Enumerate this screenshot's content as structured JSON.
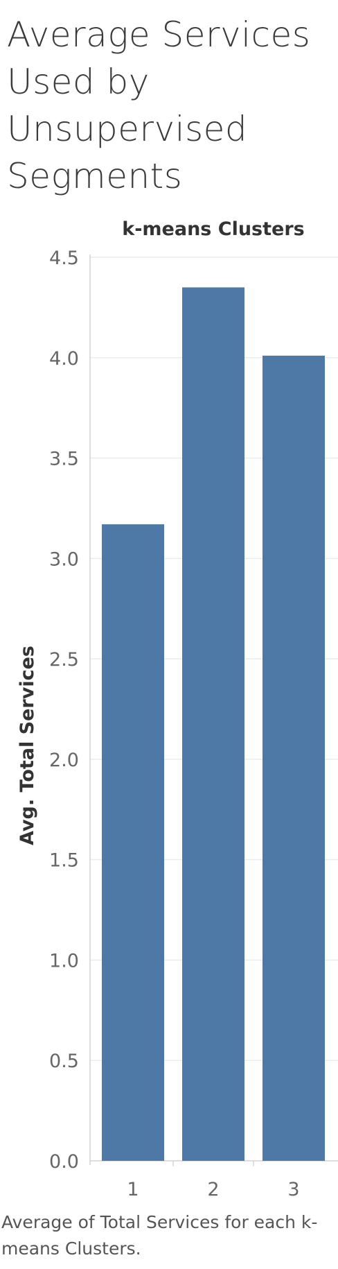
{
  "page": {
    "title": "Average Services Used by Unsupervised Segments",
    "caption": "Average of Total Services for each k-means Clusters."
  },
  "chart_data": {
    "type": "bar",
    "column_header": "k-means Clusters",
    "categories": [
      "1",
      "2",
      "3"
    ],
    "values": [
      3.17,
      4.35,
      4.01
    ],
    "xlabel": "",
    "ylabel": "Avg. Total Services",
    "ylim": [
      0,
      4.5
    ],
    "yticks": [
      "0.0",
      "0.5",
      "1.0",
      "1.5",
      "2.0",
      "2.5",
      "3.0",
      "3.5",
      "4.0",
      "4.5"
    ],
    "grid": true,
    "bar_color": "#4e79a7",
    "grid_color": "#ececec",
    "axis_color": "#d4d4d4"
  }
}
